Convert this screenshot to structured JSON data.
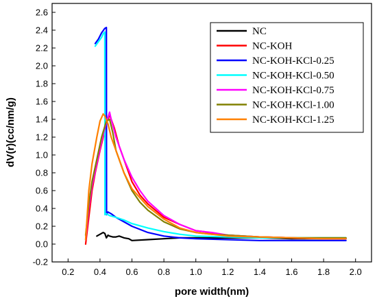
{
  "chart_data": {
    "type": "line",
    "title": "",
    "xlabel": "pore width(nm)",
    "ylabel": "dV(r)(cc/nm/g)",
    "xlim": [
      0.1,
      2.1
    ],
    "ylim": [
      -0.2,
      2.7
    ],
    "xticks": [
      "0.2",
      "0.4",
      "0.6",
      "0.8",
      "1.0",
      "1.2",
      "1.4",
      "1.6",
      "1.8",
      "2.0"
    ],
    "yticks": [
      "-0.2",
      "0.0",
      "0.2",
      "0.4",
      "0.6",
      "0.8",
      "1.0",
      "1.2",
      "1.4",
      "1.6",
      "1.8",
      "2.0",
      "2.2",
      "2.4",
      "2.6"
    ],
    "legend_position": "top-right",
    "grid": false,
    "series": [
      {
        "name": "NC",
        "color": "#000000",
        "x": [
          0.38,
          0.4,
          0.42,
          0.43,
          0.44,
          0.45,
          0.46,
          0.48,
          0.5,
          0.52,
          0.55,
          0.58,
          0.6,
          0.7,
          0.8,
          0.9,
          1.0,
          1.2,
          1.4,
          1.6,
          1.8,
          1.94
        ],
        "y": [
          0.09,
          0.11,
          0.13,
          0.12,
          0.07,
          0.1,
          0.09,
          0.08,
          0.08,
          0.09,
          0.07,
          0.06,
          0.04,
          0.05,
          0.06,
          0.07,
          0.07,
          0.07,
          0.07,
          0.06,
          0.06,
          0.06
        ]
      },
      {
        "name": "NC-KOH",
        "color": "#ff0000",
        "x": [
          0.31,
          0.33,
          0.35,
          0.37,
          0.4,
          0.42,
          0.44,
          0.46,
          0.47,
          0.49,
          0.52,
          0.55,
          0.6,
          0.65,
          0.7,
          0.8,
          0.9,
          1.0,
          1.05,
          1.1,
          1.2,
          1.3,
          1.4,
          1.6,
          1.8,
          1.94
        ],
        "y": [
          0.0,
          0.3,
          0.6,
          0.8,
          1.05,
          1.2,
          1.35,
          1.45,
          1.4,
          1.3,
          1.1,
          0.95,
          0.7,
          0.55,
          0.45,
          0.3,
          0.22,
          0.15,
          0.14,
          0.12,
          0.1,
          0.09,
          0.08,
          0.07,
          0.06,
          0.06
        ]
      },
      {
        "name": "NC-KOH-KCl-0.25",
        "color": "#0000ff",
        "x": [
          0.37,
          0.39,
          0.41,
          0.43,
          0.44,
          0.441,
          0.45,
          0.47,
          0.5,
          0.55,
          0.6,
          0.7,
          0.8,
          0.9,
          1.0,
          1.2,
          1.4,
          1.6,
          1.8,
          1.94
        ],
        "y": [
          2.25,
          2.3,
          2.37,
          2.42,
          2.43,
          0.33,
          0.36,
          0.34,
          0.3,
          0.25,
          0.2,
          0.13,
          0.09,
          0.07,
          0.06,
          0.05,
          0.04,
          0.04,
          0.04,
          0.04
        ]
      },
      {
        "name": "NC-KOH-KCl-0.50",
        "color": "#00ffff",
        "x": [
          0.37,
          0.39,
          0.41,
          0.42,
          0.43,
          0.431,
          0.44,
          0.46,
          0.5,
          0.55,
          0.6,
          0.7,
          0.8,
          0.9,
          1.0,
          1.2,
          1.4,
          1.6,
          1.8,
          1.94
        ],
        "y": [
          2.22,
          2.27,
          2.32,
          2.36,
          2.38,
          0.33,
          0.34,
          0.32,
          0.3,
          0.27,
          0.23,
          0.18,
          0.14,
          0.11,
          0.09,
          0.08,
          0.07,
          0.07,
          0.07,
          0.07
        ]
      },
      {
        "name": "NC-KOH-KCl-0.75",
        "color": "#ff00ff",
        "x": [
          0.31,
          0.33,
          0.35,
          0.38,
          0.41,
          0.43,
          0.45,
          0.46,
          0.47,
          0.5,
          0.55,
          0.6,
          0.65,
          0.7,
          0.8,
          0.9,
          1.0,
          1.05,
          1.1,
          1.2,
          1.3,
          1.4,
          1.6,
          1.8,
          1.94
        ],
        "y": [
          0.05,
          0.4,
          0.65,
          0.9,
          1.15,
          1.3,
          1.42,
          1.48,
          1.4,
          1.2,
          0.95,
          0.75,
          0.6,
          0.48,
          0.32,
          0.22,
          0.15,
          0.14,
          0.13,
          0.1,
          0.09,
          0.08,
          0.07,
          0.06,
          0.06
        ]
      },
      {
        "name": "NC-KOH-KCl-1.00",
        "color": "#808000",
        "x": [
          0.31,
          0.33,
          0.35,
          0.38,
          0.41,
          0.44,
          0.46,
          0.48,
          0.5,
          0.55,
          0.6,
          0.65,
          0.7,
          0.8,
          0.9,
          1.0,
          1.1,
          1.2,
          1.4,
          1.6,
          1.8,
          1.94
        ],
        "y": [
          0.1,
          0.45,
          0.7,
          0.95,
          1.2,
          1.38,
          1.4,
          1.25,
          1.05,
          0.8,
          0.6,
          0.47,
          0.38,
          0.25,
          0.17,
          0.13,
          0.11,
          0.1,
          0.08,
          0.07,
          0.07,
          0.07
        ]
      },
      {
        "name": "NC-KOH-KCl-1.25",
        "color": "#ff8000",
        "x": [
          0.31,
          0.33,
          0.35,
          0.38,
          0.4,
          0.42,
          0.43,
          0.45,
          0.47,
          0.5,
          0.55,
          0.6,
          0.7,
          0.8,
          0.9,
          1.0,
          1.05,
          1.1,
          1.2,
          1.4,
          1.6,
          1.8,
          1.94
        ],
        "y": [
          0.05,
          0.6,
          0.9,
          1.2,
          1.38,
          1.46,
          1.44,
          1.35,
          1.2,
          1.05,
          0.8,
          0.62,
          0.42,
          0.28,
          0.18,
          0.13,
          0.12,
          0.11,
          0.09,
          0.08,
          0.07,
          0.06,
          0.06
        ]
      }
    ]
  }
}
